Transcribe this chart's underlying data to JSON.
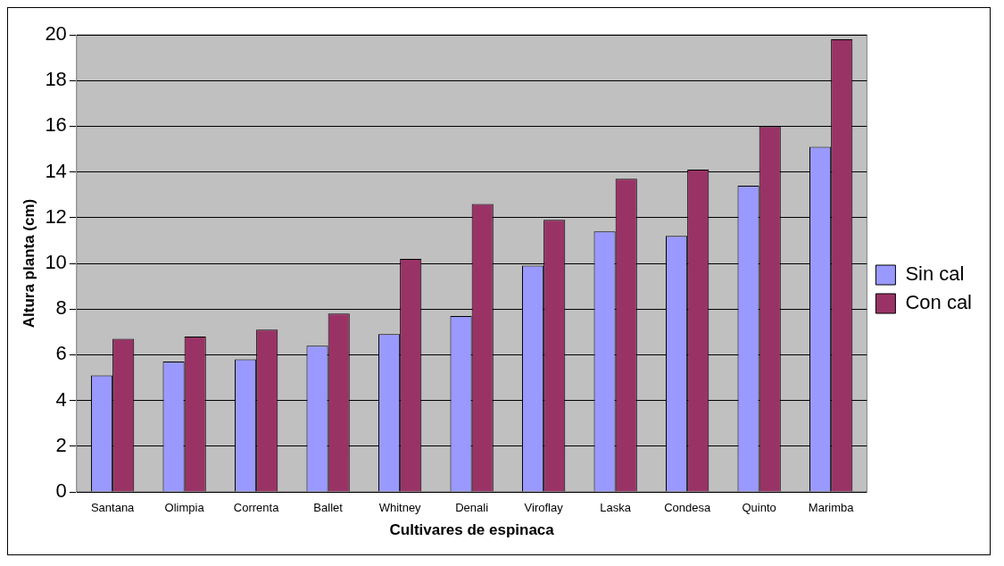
{
  "chart_data": {
    "type": "bar",
    "xlabel": "Cultivares de espinaca",
    "ylabel": "Altura planta (cm)",
    "categories": [
      "Santana",
      "Olimpia",
      "Correnta",
      "Ballet",
      "Whitney",
      "Denali",
      "Viroflay",
      "Laska",
      "Condesa",
      "Quinto",
      "Marimba"
    ],
    "series": [
      {
        "name": "Sin cal",
        "color": "#9999ff",
        "values": [
          5.1,
          5.7,
          5.8,
          6.4,
          6.9,
          7.7,
          9.9,
          11.4,
          11.2,
          13.4,
          15.1
        ]
      },
      {
        "name": "Con cal",
        "color": "#993366",
        "values": [
          6.7,
          6.8,
          7.1,
          7.8,
          10.2,
          12.6,
          11.9,
          13.7,
          14.1,
          16.0,
          19.8
        ]
      }
    ],
    "ylim": [
      0,
      20
    ],
    "yticks": [
      0,
      2,
      4,
      6,
      8,
      10,
      12,
      14,
      16,
      18,
      20
    ],
    "grid": "y",
    "legend": "right"
  }
}
